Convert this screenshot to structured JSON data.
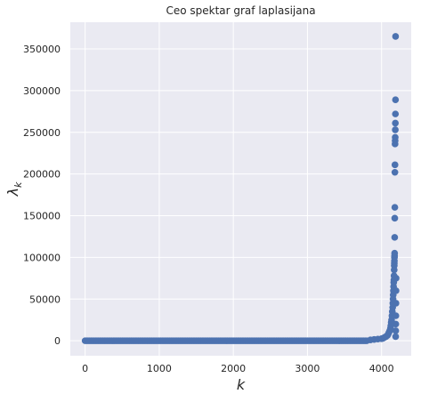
{
  "chart_data": {
    "type": "scatter",
    "title": "Ceo spektar graf laplasijana",
    "xlabel": "k",
    "ylabel_symbol": "λ",
    "ylabel_subscript": "k",
    "xlim": [
      -200,
      4400
    ],
    "ylim": [
      -18000,
      382000
    ],
    "xticks": [
      0,
      1000,
      2000,
      3000,
      4000
    ],
    "yticks": [
      0,
      50000,
      100000,
      150000,
      200000,
      250000,
      300000,
      350000
    ],
    "grid": true,
    "background": "#eaeaf2",
    "gridColor": "#ffffff",
    "color": "#4c72b0",
    "baseline": {
      "x_start": 0,
      "x_end": 3800,
      "y": 0
    },
    "series": [
      {
        "x": [
          3850,
          3900,
          3950,
          4000,
          4020,
          4040,
          4060,
          4080,
          4090,
          4100,
          4110,
          4120,
          4125,
          4130,
          4135,
          4140,
          4145,
          4150,
          4152,
          4155,
          4157,
          4160,
          4162,
          4164,
          4166,
          4168,
          4170,
          4171,
          4172,
          4173,
          4174,
          4175,
          4176,
          4177,
          4178,
          4179,
          4180,
          4181,
          4182,
          4183,
          4184,
          4185,
          4186,
          4187,
          4188,
          4189,
          4190,
          4191,
          4192,
          4193,
          4194,
          4195,
          4196
        ],
        "y": [
          1000,
          1500,
          2000,
          2500,
          3000,
          4000,
          5000,
          6500,
          8000,
          10000,
          12000,
          15000,
          18000,
          22000,
          25000,
          30000,
          35000,
          40000,
          45000,
          50000,
          55000,
          60000,
          65000,
          70000,
          73000,
          78000,
          85000,
          90000,
          93000,
          96000,
          100000,
          102000,
          105000,
          124000,
          147000,
          160000,
          202000,
          211000,
          236000,
          240000,
          244000,
          253000,
          261000,
          272000,
          289000,
          365000,
          5000,
          12000,
          20000,
          30000,
          45000,
          60000,
          75000
        ]
      }
    ]
  }
}
